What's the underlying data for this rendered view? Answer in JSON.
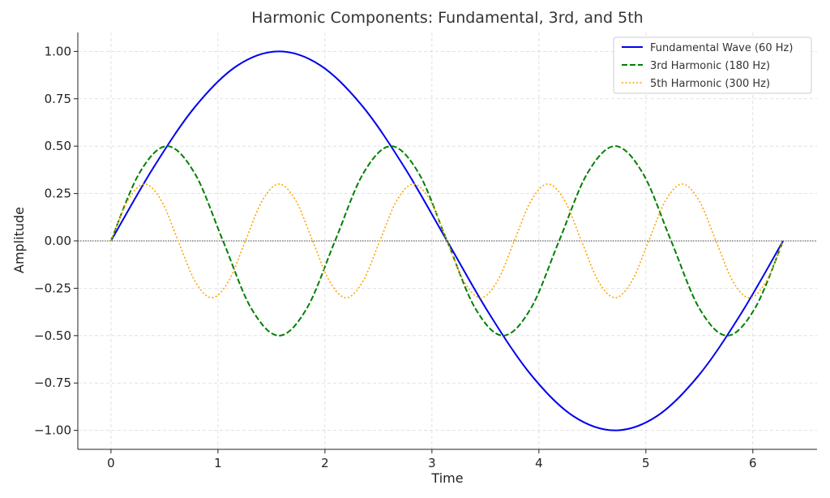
{
  "chart_data": {
    "type": "line",
    "title": "Harmonic Components: Fundamental, 3rd, and 5th",
    "xlabel": "Time",
    "ylabel": "Amplitude",
    "xlim": [
      -0.31,
      6.6
    ],
    "ylim": [
      -1.1,
      1.1
    ],
    "xticks": [
      0,
      1,
      2,
      3,
      4,
      5,
      6
    ],
    "xtick_labels": [
      "0",
      "1",
      "2",
      "3",
      "4",
      "5",
      "6"
    ],
    "yticks": [
      1.0,
      0.75,
      0.5,
      0.25,
      0.0,
      -0.25,
      -0.5,
      -0.75,
      -1.0
    ],
    "ytick_labels": [
      "1.00",
      "0.75",
      "0.50",
      "0.25",
      "0.00",
      "−0.25",
      "−0.50",
      "−0.75",
      "−1.00"
    ],
    "grid": true,
    "zero_line": true,
    "legend_position": "top-right",
    "series": [
      {
        "name": "Fundamental Wave (60 Hz)",
        "color": "#0000ee",
        "style": "solid",
        "x": [
          0,
          0.3927,
          0.7854,
          1.1781,
          1.5708,
          1.9635,
          2.3562,
          2.7489,
          3.1416,
          3.5343,
          3.927,
          4.3197,
          4.7124,
          5.1051,
          5.4978,
          5.8905,
          6.2832
        ],
        "y": [
          0,
          0.383,
          0.707,
          0.924,
          1.0,
          0.924,
          0.707,
          0.383,
          0,
          -0.383,
          -0.707,
          -0.924,
          -1.0,
          -0.924,
          -0.707,
          -0.383,
          0
        ]
      },
      {
        "name": "3rd Harmonic (180 Hz)",
        "color": "#008000",
        "style": "dashed",
        "x": [
          0,
          0.2618,
          0.5236,
          0.7854,
          1.0472,
          1.309,
          1.5708,
          1.8326,
          2.0944,
          2.3562,
          2.618,
          2.8798,
          3.1416,
          3.4034,
          3.6652,
          3.927,
          4.1888,
          4.4506,
          4.7124,
          4.9742,
          5.236,
          5.4978,
          5.7596,
          6.0214,
          6.2832
        ],
        "y": [
          0,
          0.354,
          0.5,
          0.354,
          0,
          -0.354,
          -0.5,
          -0.354,
          0,
          0.354,
          0.5,
          0.354,
          0,
          -0.354,
          -0.5,
          -0.354,
          0,
          0.354,
          0.5,
          0.354,
          0,
          -0.354,
          -0.5,
          -0.354,
          0
        ]
      },
      {
        "name": "5th Harmonic (300 Hz)",
        "color": "#ffa500",
        "style": "dotted",
        "x": [
          0,
          0.1571,
          0.3142,
          0.4712,
          0.6283,
          0.7854,
          0.9425,
          1.0996,
          1.2566,
          1.4137,
          1.5708,
          1.7279,
          1.885,
          2.042,
          2.1991,
          2.3562,
          2.5133,
          2.6704,
          2.8274,
          2.9845,
          3.1416,
          3.2987,
          3.4558,
          3.6128,
          3.7699,
          3.927,
          4.0841,
          4.2412,
          4.3982,
          4.5553,
          4.7124,
          4.8695,
          5.0265,
          5.1836,
          5.3407,
          5.4978,
          5.6549,
          5.8119,
          5.969,
          6.1261,
          6.2832
        ],
        "y": [
          0,
          0.212,
          0.3,
          0.212,
          0,
          -0.212,
          -0.3,
          -0.212,
          0,
          0.212,
          0.3,
          0.212,
          0,
          -0.212,
          -0.3,
          -0.212,
          0,
          0.212,
          0.3,
          0.212,
          0,
          -0.212,
          -0.3,
          -0.212,
          0,
          0.212,
          0.3,
          0.212,
          0,
          -0.212,
          -0.3,
          -0.212,
          0,
          0.212,
          0.3,
          0.212,
          0,
          -0.212,
          -0.3,
          -0.212,
          0
        ]
      }
    ]
  }
}
